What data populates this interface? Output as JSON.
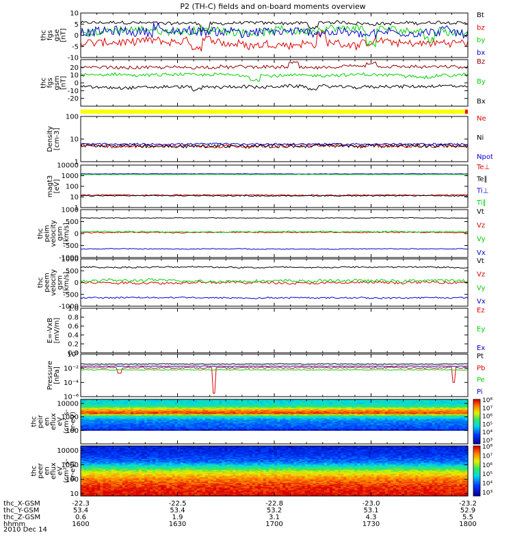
{
  "title": "P2 (TH-C) fields and on-board moments overview",
  "date_label": "2010 Dec 14",
  "colors": {
    "black": "#000000",
    "red": "#dd0000",
    "green": "#00d000",
    "blue": "#0000d0",
    "darkred": "#8b0000",
    "axis": "#000000",
    "bar_yellow": "#ffff00",
    "bar_red": "#ff0000"
  },
  "orbit_axis": {
    "row_labels": [
      "thc_X-GSM",
      "thc_Y-GSM",
      "thc_Z-GSM",
      "hhmm"
    ],
    "columns": [
      [
        "-22.3",
        "53.4",
        "0.6",
        "1600"
      ],
      [
        "-22.5",
        "53.4",
        "1.9",
        "1630"
      ],
      [
        "-22.8",
        "53.2",
        "3.1",
        "1700"
      ],
      [
        "-23.0",
        "53.1",
        "4.3",
        "1730"
      ],
      [
        "-23.2",
        "52.9",
        "5.5",
        "1800"
      ]
    ]
  },
  "status_bar": {
    "state": "fast survey",
    "end_marker": "red"
  },
  "chart_data": [
    {
      "type": "line",
      "id": "fgs_gse",
      "ylabel_lines": [
        "thc",
        "fgs",
        "gse",
        "[nT]"
      ],
      "ylim": [
        -10,
        10
      ],
      "yticks": [
        "10",
        "5",
        "0",
        "-5",
        "-10"
      ],
      "ytick_values": [
        10,
        5,
        0,
        -5,
        -10
      ],
      "x": [
        "16:00",
        "18:00"
      ],
      "series": [
        {
          "name": "Bt",
          "color": "#000000",
          "mean": 5.5,
          "noise": 0.7,
          "spikes": [
            [
              0.32,
              -3
            ],
            [
              0.6,
              -2
            ]
          ]
        },
        {
          "name": "bz",
          "color": "#dd0000",
          "mean": -3.5,
          "noise": 1.8,
          "spikes": [
            [
              0.3,
              -3
            ],
            [
              0.62,
              4
            ]
          ]
        },
        {
          "name": "by",
          "color": "#00d000",
          "mean": 2,
          "noise": 1.7,
          "spikes": [
            [
              0.75,
              -6
            ],
            [
              0.9,
              -4
            ]
          ]
        },
        {
          "name": "bx",
          "color": "#0000d0",
          "mean": 1.5,
          "noise": 2,
          "spikes": [
            [
              0.2,
              3
            ],
            [
              0.4,
              2
            ]
          ]
        }
      ]
    },
    {
      "type": "line",
      "id": "fgs_gsm",
      "ylabel_lines": [
        "thc",
        "fgs",
        "gsm",
        "[nT]"
      ],
      "ylim": [
        -30,
        30
      ],
      "yticks": [
        "20",
        "10",
        "0",
        "-10",
        "-20"
      ],
      "ytick_values": [
        20,
        10,
        0,
        -10,
        -20
      ],
      "x": [
        "16:00",
        "18:00"
      ],
      "series": [
        {
          "name": "Bz",
          "color": "#8b0000",
          "mean": 20,
          "noise": 2,
          "spikes": [
            [
              0.55,
              5
            ],
            [
              0.75,
              4
            ]
          ]
        },
        {
          "name": "By",
          "color": "#00d000",
          "mean": 10,
          "noise": 2,
          "spikes": [
            [
              0.45,
              -6
            ],
            [
              0.9,
              -2
            ]
          ]
        },
        {
          "name": "Bx",
          "color": "#000000",
          "mean": -5,
          "noise": 2,
          "spikes": [
            [
              0.3,
              -3
            ],
            [
              0.6,
              -2
            ]
          ]
        }
      ]
    },
    {
      "type": "line",
      "id": "density",
      "log": true,
      "ylabel_lines": [
        "Density",
        "[cm-3]"
      ],
      "ylim": [
        1,
        100
      ],
      "yticks": [
        "100",
        "10",
        "1"
      ],
      "ytick_values": [
        100,
        10,
        1
      ],
      "x": [
        "16:00",
        "18:00"
      ],
      "series": [
        {
          "name": "Ne",
          "color": "#dd0000",
          "mean": 5,
          "noise": 0.08
        },
        {
          "name": "Ni",
          "color": "#000000",
          "mean": 5,
          "noise": 0.08
        },
        {
          "name": "Npot",
          "color": "#0000d0",
          "mean": 6,
          "noise": 0.04
        }
      ]
    },
    {
      "type": "line",
      "id": "magt3",
      "log": true,
      "ylabel_lines": [
        "magt3",
        "[eV]"
      ],
      "ylim": [
        1,
        10000
      ],
      "yticks": [
        "10000",
        "1000",
        "100",
        "10",
        "1"
      ],
      "ytick_values": [
        10000,
        1000,
        100,
        10,
        1
      ],
      "x": [
        "16:00",
        "18:00"
      ],
      "series": [
        {
          "name": "Te⊥",
          "color": "#dd0000",
          "mean": 15,
          "noise": 0.05
        },
        {
          "name": "Te∥",
          "color": "#000000",
          "mean": 13,
          "noise": 0.05
        },
        {
          "name": "Ti⊥",
          "color": "#0000d0",
          "mean": 1500,
          "noise": 0.02
        },
        {
          "name": "Ti∥",
          "color": "#00d000",
          "mean": 1300,
          "noise": 0.02
        }
      ]
    },
    {
      "type": "line",
      "id": "peim_velocity",
      "ylabel_lines": [
        "thc",
        "peim",
        "velocity",
        "gsm",
        "[km/s]"
      ],
      "ylim": [
        -1000,
        1000
      ],
      "yticks": [
        "1000",
        "500",
        "0",
        "-500",
        "-1000"
      ],
      "ytick_values": [
        1000,
        500,
        0,
        -500,
        -1000
      ],
      "x": [
        "16:00",
        "18:00"
      ],
      "series": [
        {
          "name": "Vt",
          "color": "#000000",
          "mean": 650,
          "noise": 15
        },
        {
          "name": "Vz",
          "color": "#dd0000",
          "mean": 50,
          "noise": 20
        },
        {
          "name": "Vy",
          "color": "#00d000",
          "mean": 80,
          "noise": 25
        },
        {
          "name": "Vx",
          "color": "#0000d0",
          "mean": -640,
          "noise": 15
        }
      ]
    },
    {
      "type": "line",
      "id": "peem_velocity",
      "ylabel_lines": [
        "thc",
        "peem",
        "velocity",
        "gsm",
        "[km/s]"
      ],
      "ylim": [
        -1000,
        1000
      ],
      "yticks": [
        "1000",
        "500",
        "0",
        "-500",
        "-1000"
      ],
      "ytick_values": [
        1000,
        500,
        0,
        -500,
        -1000
      ],
      "x": [
        "16:00",
        "18:00"
      ],
      "series": [
        {
          "name": "Vt",
          "color": "#000000",
          "mean": 650,
          "noise": 30
        },
        {
          "name": "Vz",
          "color": "#dd0000",
          "mean": 0,
          "noise": 50
        },
        {
          "name": "Vy",
          "color": "#00d000",
          "mean": 80,
          "noise": 60
        },
        {
          "name": "Vx",
          "color": "#0000d0",
          "mean": -640,
          "noise": 30
        }
      ]
    },
    {
      "type": "line",
      "id": "e_field",
      "ylabel_lines": [
        "E=-VxB",
        "[mV/m]"
      ],
      "ylim": [
        0,
        1
      ],
      "yticks": [
        "1.0",
        "0.8",
        "0.6",
        "0.4",
        "0.2",
        "0.0"
      ],
      "ytick_values": [
        1,
        0.8,
        0.6,
        0.4,
        0.2,
        0
      ],
      "x": [
        "16:00",
        "18:00"
      ],
      "series": [
        {
          "name": "Ez",
          "color": "#dd0000"
        },
        {
          "name": "Ey",
          "color": "#00d000"
        },
        {
          "name": "Ex",
          "color": "#0000d0"
        }
      ]
    },
    {
      "type": "line",
      "id": "pressure",
      "log": true,
      "ylabel_lines": [
        "Pressure",
        "[nPa]"
      ],
      "ylim": [
        1e-06,
        1
      ],
      "yticks": [
        "10⁰",
        "10⁻²",
        "10⁻⁴",
        "10⁻⁶"
      ],
      "ytick_values": [
        1,
        0.01,
        0.0001,
        1e-06
      ],
      "x": [
        "16:00",
        "18:00"
      ],
      "series": [
        {
          "name": "Pt",
          "color": "#000000",
          "mean": 0.04,
          "noise": 0.06
        },
        {
          "name": "Pb",
          "color": "#dd0000",
          "mean": 0.012,
          "noise": 0.1,
          "dips": [
            [
              0.345,
              3e-06
            ],
            [
              0.965,
              0.0001
            ],
            [
              0.1,
              0.002
            ]
          ]
        },
        {
          "name": "Pe",
          "color": "#00d000",
          "mean": 0.006,
          "noise": 0.04
        },
        {
          "name": "Pi",
          "color": "#0000d0",
          "mean": 0.02,
          "noise": 0.05
        }
      ]
    },
    {
      "type": "heatmap",
      "id": "peir_spectrogram",
      "log": true,
      "ylabel_lines": [
        "thc",
        "peir",
        "en",
        "eflux",
        "eV",
        "(cm²-s-",
        "sr-eV)"
      ],
      "ylim": [
        10,
        20000
      ],
      "yticks": [
        "10000",
        "1000",
        "100"
      ],
      "ytick_values": [
        10000,
        1000,
        100
      ],
      "colorbar": {
        "ticks": [
          "10⁸",
          "10⁷",
          "10⁶",
          "10⁵",
          "10⁴",
          "10³"
        ],
        "range_exp": [
          2,
          8
        ]
      },
      "x": [
        "16:00",
        "18:00"
      ],
      "profile": [
        [
          10000,
          4.5
        ],
        [
          6000,
          5
        ],
        [
          3000,
          7
        ],
        [
          1800,
          7.6
        ],
        [
          1200,
          5
        ],
        [
          600,
          3.8
        ],
        [
          250,
          3.5
        ],
        [
          130,
          3.2
        ],
        [
          110,
          2.5
        ],
        [
          100,
          0
        ]
      ]
    },
    {
      "type": "heatmap",
      "id": "peer_spectrogram",
      "log": true,
      "ylabel_lines": [
        "thc",
        "peer",
        "en",
        "eflux",
        "eV",
        "(cm²-s-",
        "sr-eV)"
      ],
      "ylim": [
        7,
        20000
      ],
      "yticks": [
        "10000",
        "1000",
        "100",
        "10"
      ],
      "ytick_values": [
        10000,
        1000,
        100,
        10
      ],
      "colorbar": {
        "ticks": [
          "10⁸",
          "10⁷",
          "10⁶",
          "10⁵",
          "10⁴",
          "10³"
        ],
        "range_exp": [
          2.5,
          8
        ]
      },
      "x": [
        "16:00",
        "18:00"
      ],
      "profile": [
        [
          14000,
          3.2
        ],
        [
          5000,
          3.4
        ],
        [
          1500,
          4
        ],
        [
          600,
          5.3
        ],
        [
          300,
          6.3
        ],
        [
          100,
          7.2
        ],
        [
          30,
          7.7
        ],
        [
          10,
          7.9
        ],
        [
          7,
          8
        ]
      ]
    }
  ]
}
